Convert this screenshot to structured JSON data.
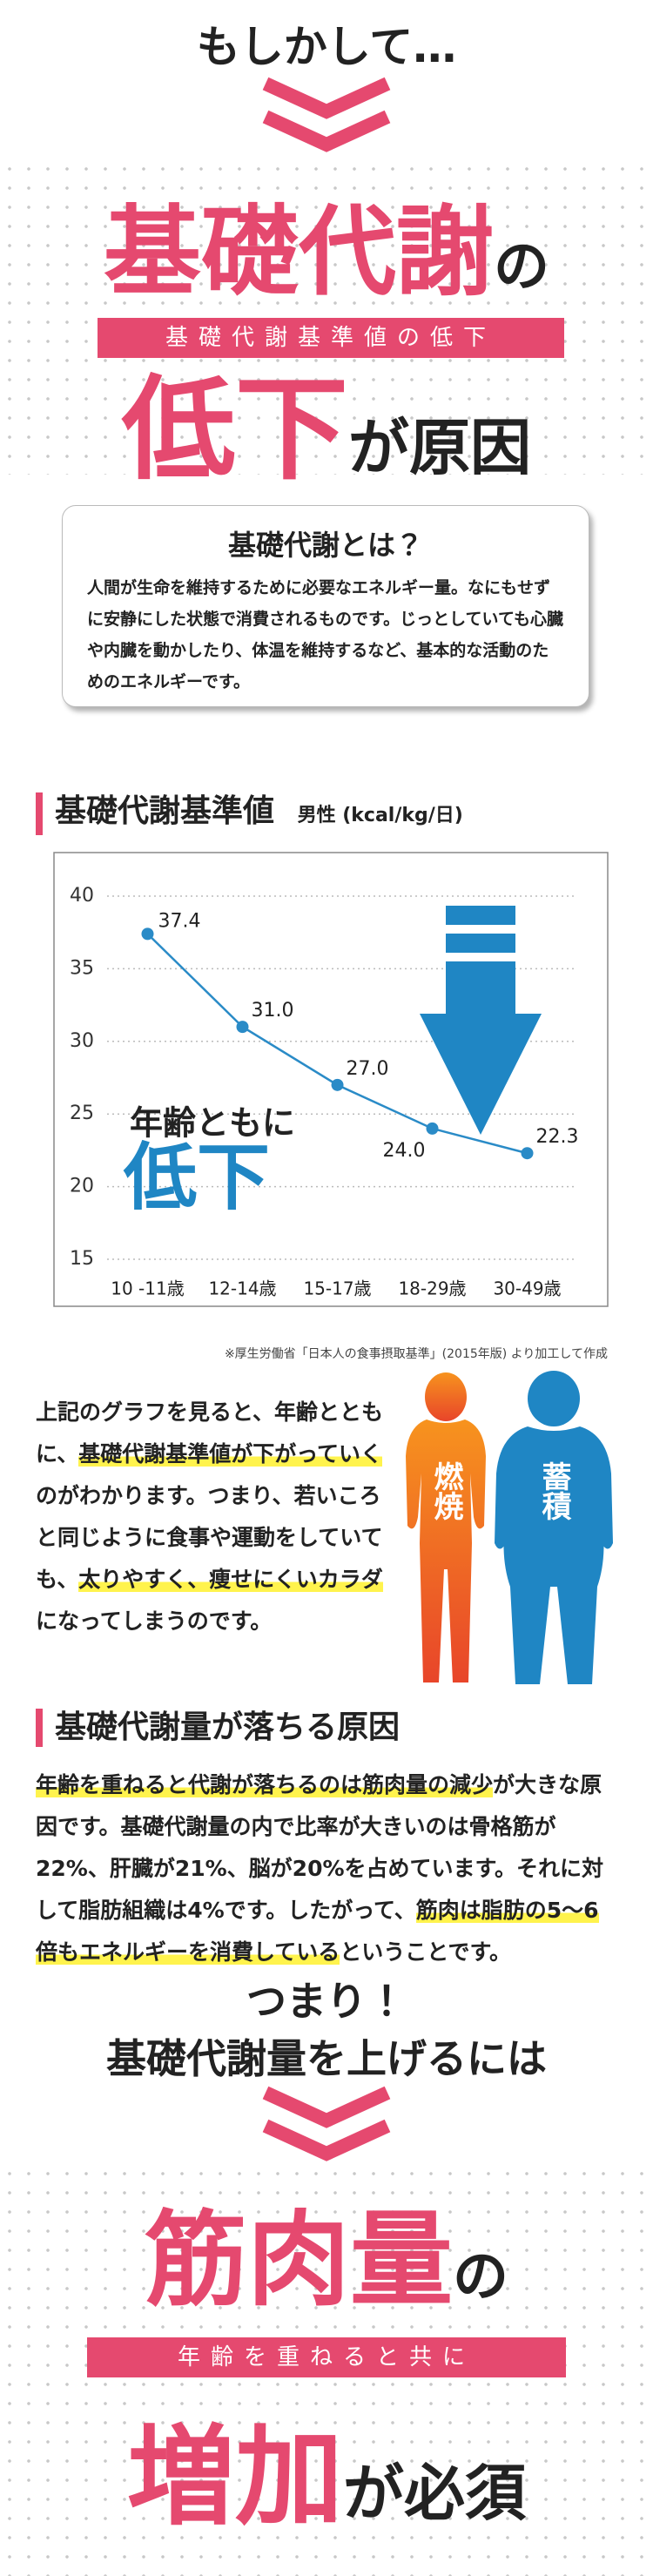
{
  "intro": "もしかして…",
  "headline1": {
    "main": "基礎代謝",
    "tail": "の",
    "banner": "基礎代謝基準値の低下",
    "main2": "低下",
    "tail2": "が原因"
  },
  "definition": {
    "title": "基礎代謝とは？",
    "text": "人間が生命を維持するために必要なエネルギー量。なにもせずに安静にした状態で消費されるものです。じっとしていても心臓や内臓を動かしたり、体温を維持するなど、基本的な活動のためのエネルギーです。"
  },
  "chart_data": {
    "type": "line",
    "title": "基礎代謝基準値",
    "subtitle": "男性 (kcal/kg/日)",
    "categories": [
      "10 -11歳",
      "12-14歳",
      "15-17歳",
      "18-29歳",
      "30-49歳"
    ],
    "values": [
      37.4,
      31.0,
      27.0,
      24.0,
      22.3
    ],
    "value_labels": [
      "37.4",
      "31.0",
      "27.0",
      "24.0",
      "22.3"
    ],
    "color": "#2a8bc7",
    "ylim": [
      15,
      40
    ],
    "yticks": [
      15,
      20,
      25,
      30,
      35,
      40
    ],
    "grid": true,
    "annotations": [
      "年齢ともに",
      "低下"
    ]
  },
  "source_note": "※厚生労働省「日本人の食事摂取基準」(2015年版) より加工して作成",
  "body1": {
    "segments": [
      {
        "text": "上記のグラフを見ると、年齢とともに、",
        "highlight": false
      },
      {
        "text": "基礎代謝基準値が下がっていく",
        "highlight": true
      },
      {
        "text": "のがわかります。つまり、若いころと同じように食事や運動をしていても、",
        "highlight": false
      },
      {
        "text": "太りやすく、痩せにくいカラダ",
        "highlight": true
      },
      {
        "text": "になってしまうのです。",
        "highlight": false
      }
    ]
  },
  "figures": [
    "燃焼",
    "蓄積"
  ],
  "section2": {
    "title": "基礎代謝量が落ちる原因",
    "segments": [
      {
        "text": "年齢を重ねると代謝が落ちるのは筋肉量の減少",
        "highlight": true
      },
      {
        "text": "が大きな原因です。基礎代謝量の内で比率が大きいのは骨格筋が22%、肝臓が21%、脳が20%を占めています。それに対して脂肪組織は4%です。したがって、",
        "highlight": false
      },
      {
        "text": "筋肉は脂肪の5～6倍もエネルギーを消費している",
        "highlight": true
      },
      {
        "text": "ということです。",
        "highlight": false
      }
    ]
  },
  "conclusion": {
    "lead": [
      "つまり！",
      "基礎代謝量を上げるには"
    ],
    "main": "筋肉量",
    "tail": "の",
    "banner": "年齢を重ねると共に",
    "main2": "増加",
    "tail2": "が必須"
  }
}
